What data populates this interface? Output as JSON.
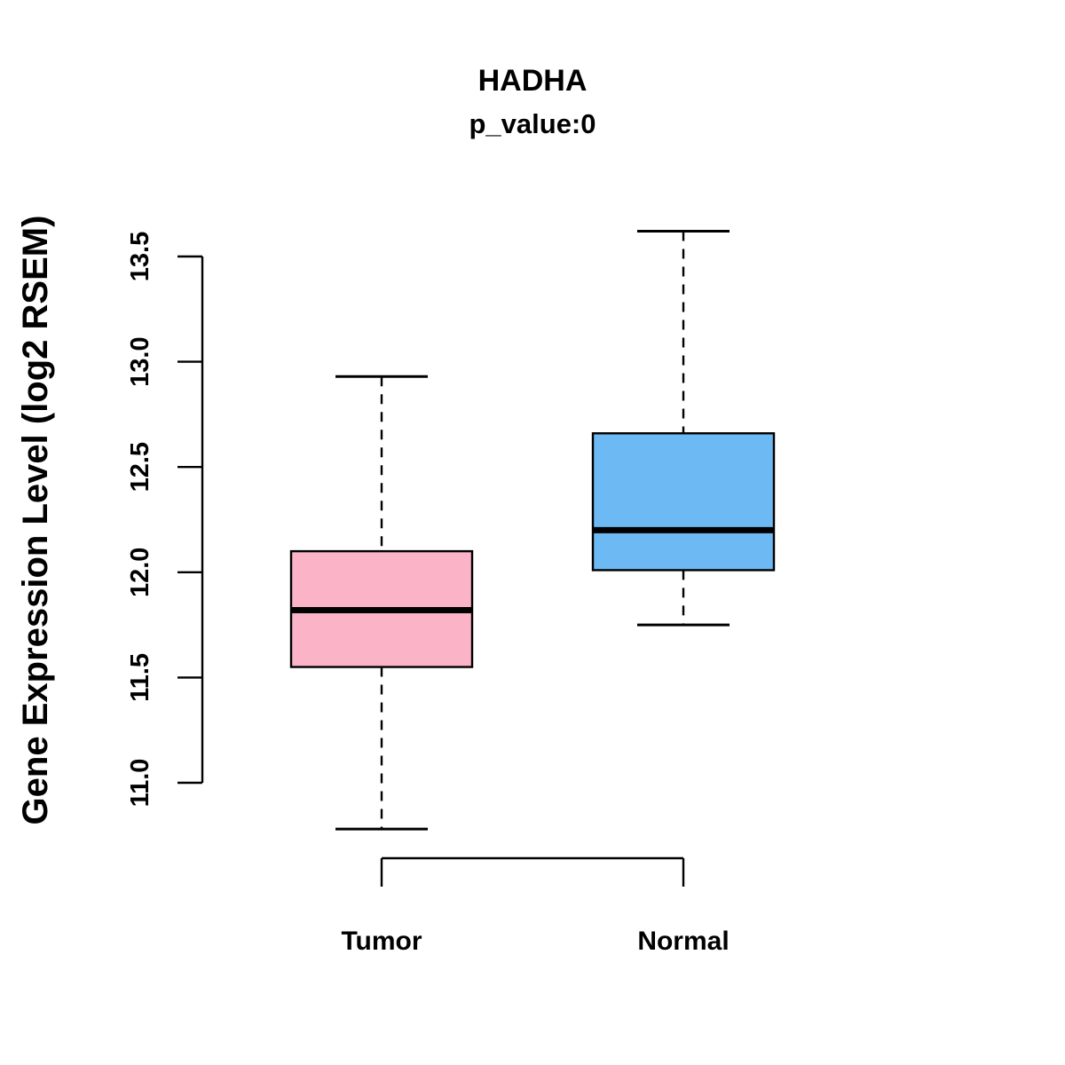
{
  "page": {
    "background": "#ffffff"
  },
  "chart_data": {
    "type": "boxplot",
    "title": "HADHA",
    "subtitle": "p_value:0",
    "ylabel": "Gene Expression Level (log2 RSEM)",
    "xlabel": "",
    "categories": [
      "Tumor",
      "Normal"
    ],
    "series": [
      {
        "name": "Tumor",
        "color": "#FBB3C8",
        "whisker_low": 10.78,
        "q1": 11.55,
        "median": 11.82,
        "q3": 12.1,
        "whisker_high": 12.93
      },
      {
        "name": "Normal",
        "color": "#6DB9F4",
        "whisker_low": 11.75,
        "q1": 12.01,
        "median": 12.2,
        "q3": 12.66,
        "whisker_high": 13.62
      }
    ],
    "ylim": [
      11.0,
      13.5
    ],
    "yticks": [
      11.0,
      11.5,
      12.0,
      12.5,
      13.0,
      13.5
    ],
    "grid": false,
    "legend": "none",
    "box_border_color": "#000000",
    "median_color": "#000000",
    "whisker_style": "dashed"
  }
}
